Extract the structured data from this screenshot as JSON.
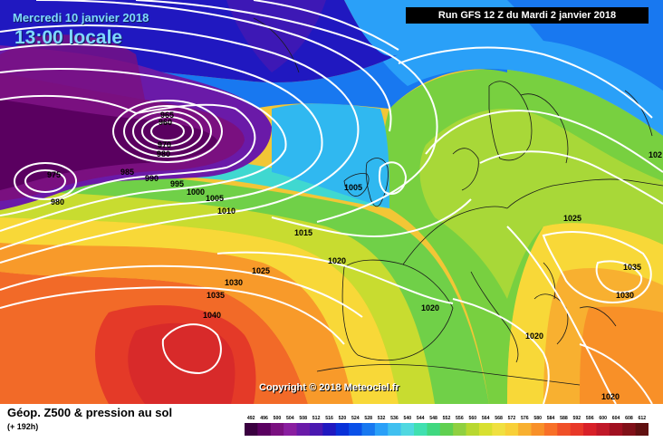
{
  "header": {
    "date": "Mercredi 10 janvier 2018",
    "time": "13:00 locale",
    "run": "Run GFS 12 Z du Mardi 2 janvier 2018"
  },
  "copyright": "Copyright © 2018 Meteociel.fr",
  "footer": {
    "title": "Géop. Z500 & pression au sol",
    "subtitle": "(+ 192h)"
  },
  "scale": {
    "labels": [
      "492",
      "496",
      "500",
      "504",
      "508",
      "512",
      "516",
      "520",
      "524",
      "528",
      "532",
      "536",
      "540",
      "544",
      "548",
      "552",
      "556",
      "560",
      "564",
      "568",
      "572",
      "576",
      "580",
      "584",
      "588",
      "592",
      "596",
      "600",
      "604",
      "608",
      "612"
    ],
    "colors": [
      "#3a0040",
      "#5a0060",
      "#7a1080",
      "#8a1ea0",
      "#6a1aa8",
      "#4a18b0",
      "#2018c0",
      "#0830d8",
      "#0a50e8",
      "#1878f0",
      "#2aa0f8",
      "#40c0f0",
      "#50d8e0",
      "#40e0b0",
      "#40d880",
      "#60d050",
      "#90d040",
      "#b8d830",
      "#d8e030",
      "#f0e040",
      "#f8d038",
      "#f8b030",
      "#f89028",
      "#f87028",
      "#f05028",
      "#e83828",
      "#d82028",
      "#c01828",
      "#a01020",
      "#801018",
      "#601010"
    ]
  },
  "isobars": [
    {
      "value": "975"
    },
    {
      "value": "980"
    },
    {
      "value": "960"
    },
    {
      "value": "965"
    },
    {
      "value": "970"
    },
    {
      "value": "980"
    },
    {
      "value": "985"
    },
    {
      "value": "990"
    },
    {
      "value": "995"
    },
    {
      "value": "1000"
    },
    {
      "value": "1005"
    },
    {
      "value": "1010"
    },
    {
      "value": "1005"
    },
    {
      "value": "1015"
    },
    {
      "value": "1020"
    },
    {
      "value": "1025"
    },
    {
      "value": "1030"
    },
    {
      "value": "1035"
    },
    {
      "value": "1040"
    },
    {
      "value": "1020"
    },
    {
      "value": "1025"
    },
    {
      "value": "1035"
    },
    {
      "value": "1030"
    },
    {
      "value": "1020"
    },
    {
      "value": "1020"
    },
    {
      "value": "102"
    }
  ]
}
